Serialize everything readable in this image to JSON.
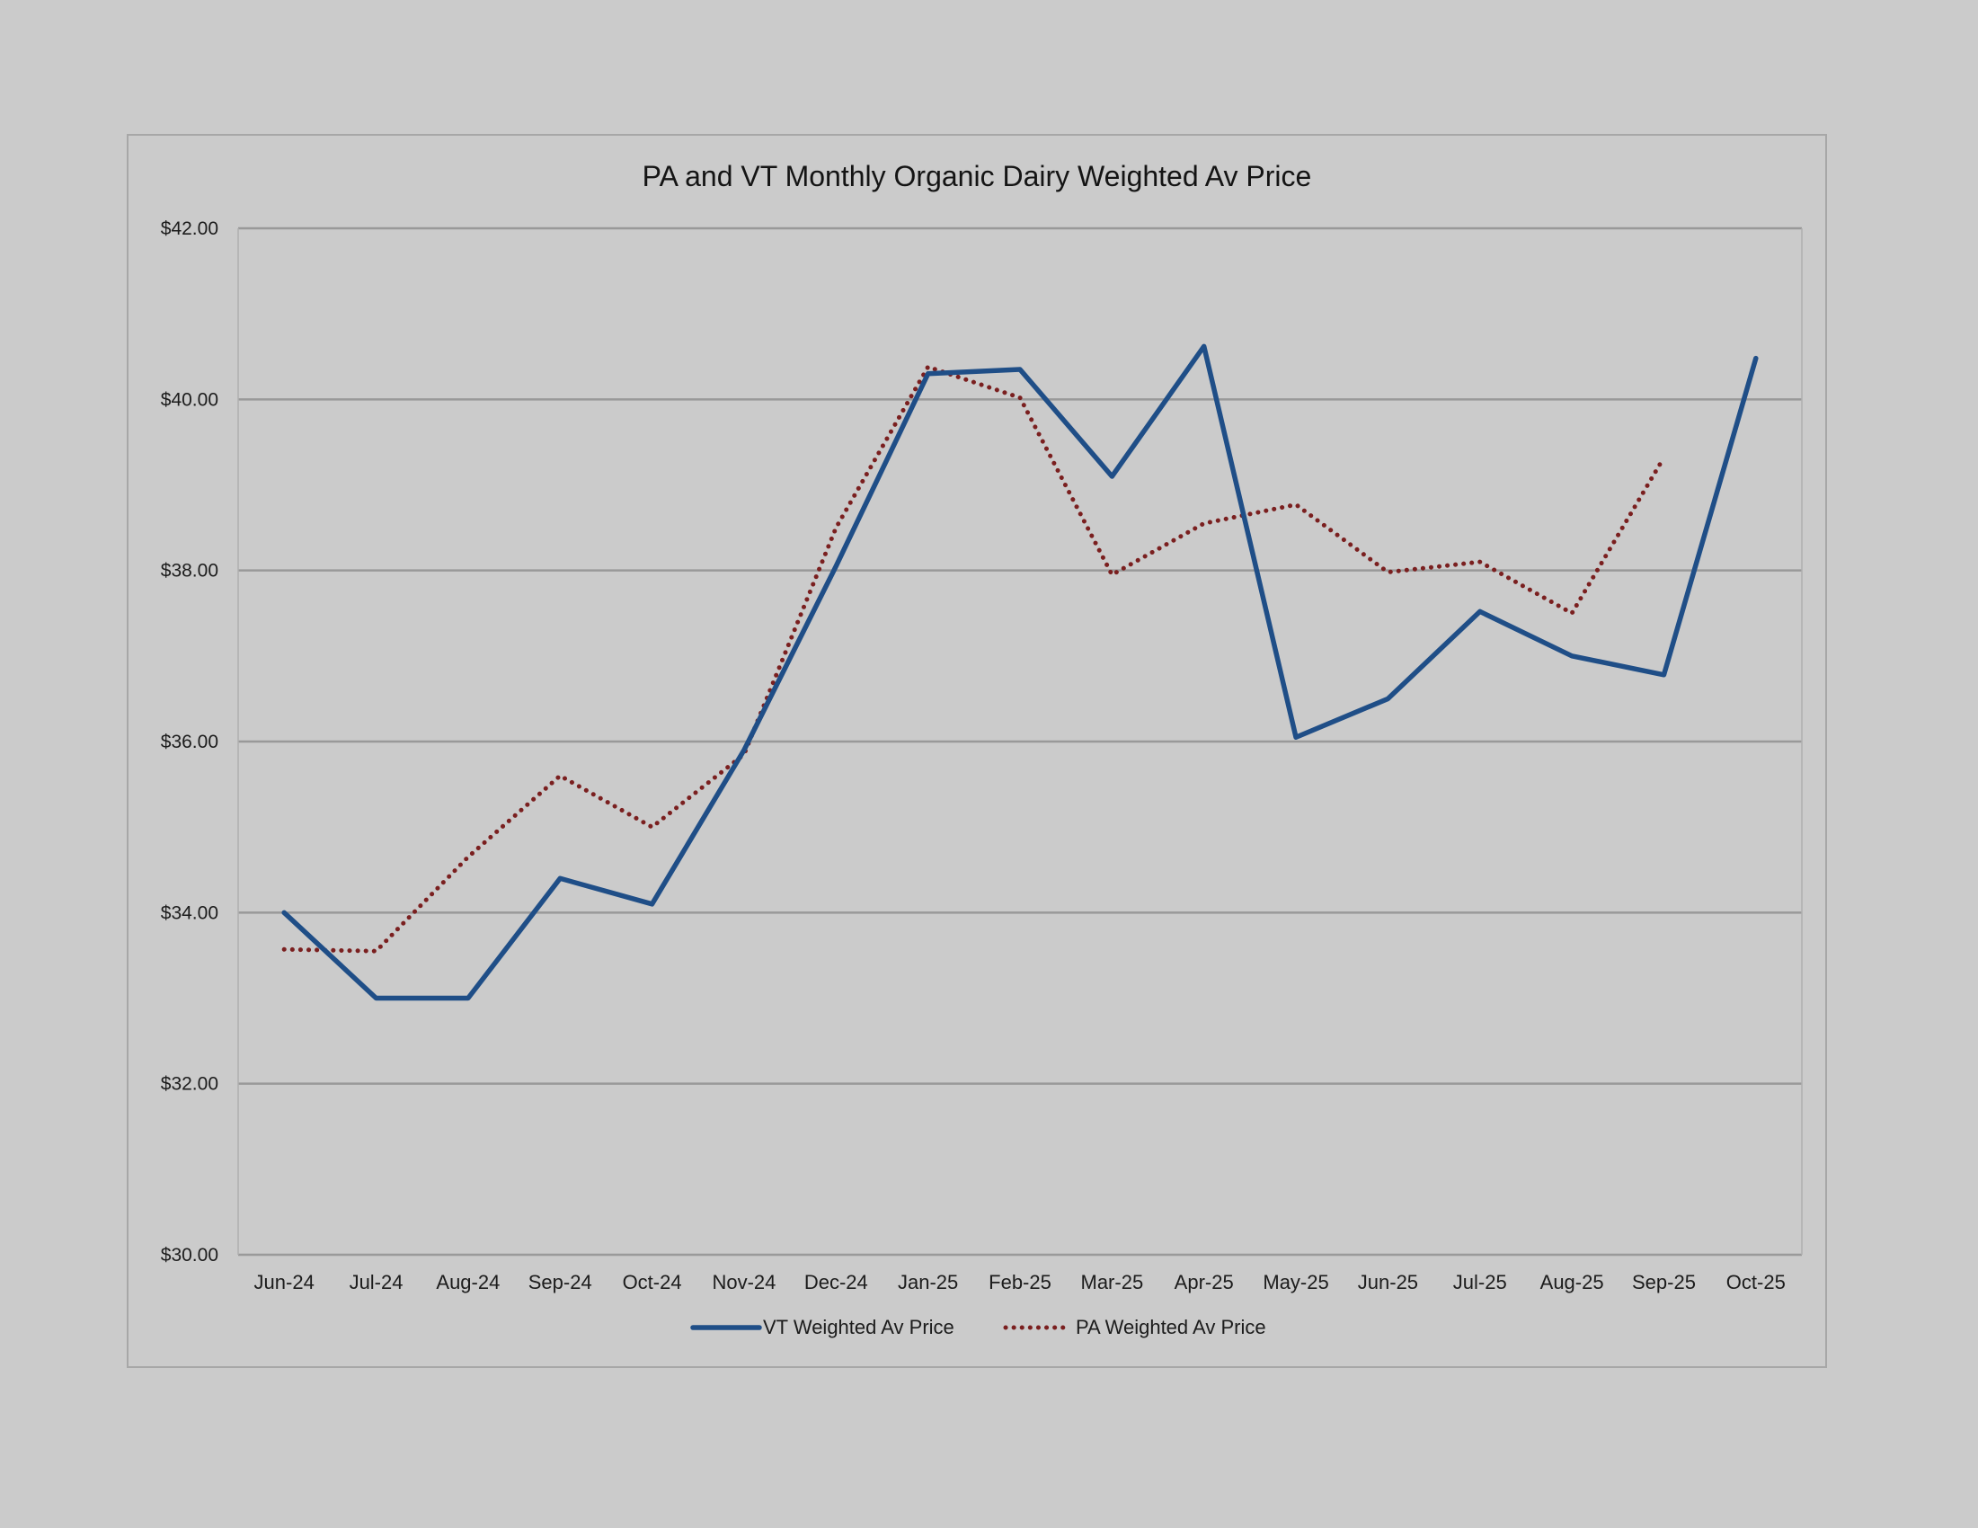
{
  "chart_data": {
    "type": "line",
    "title": "PA and VT Monthly Organic Dairy Weighted Av Price",
    "xlabel": "",
    "ylabel": "",
    "categories": [
      "Jun-24",
      "Jul-24",
      "Aug-24",
      "Sep-24",
      "Oct-24",
      "Nov-24",
      "Dec-24",
      "Jan-25",
      "Feb-25",
      "Mar-25",
      "Apr-25",
      "May-25",
      "Jun-25",
      "Jul-25",
      "Aug-25",
      "Sep-25",
      "Oct-25"
    ],
    "ylim": [
      30,
      42
    ],
    "yticks": [
      30,
      32,
      34,
      36,
      38,
      40,
      42
    ],
    "ytick_labels": [
      "$30.00",
      "$32.00",
      "$34.00",
      "$36.00",
      "$38.00",
      "$40.00",
      "$42.00"
    ],
    "grid": true,
    "legend_position": "bottom",
    "series": [
      {
        "name": "VT Weighted Av Price",
        "color": "#1f4e87",
        "style": "solid",
        "values": [
          34.0,
          33.0,
          33.0,
          34.4,
          34.1,
          35.9,
          38.05,
          40.3,
          40.35,
          39.1,
          40.62,
          36.05,
          36.5,
          37.52,
          37.0,
          36.78,
          40.48
        ]
      },
      {
        "name": "PA Weighted Av Price",
        "color": "#7a1f1f",
        "style": "dotted",
        "values": [
          33.57,
          33.55,
          34.65,
          35.6,
          35.0,
          35.85,
          38.5,
          40.38,
          40.02,
          37.95,
          38.55,
          38.77,
          37.98,
          38.1,
          37.5,
          39.32,
          null
        ]
      }
    ]
  }
}
